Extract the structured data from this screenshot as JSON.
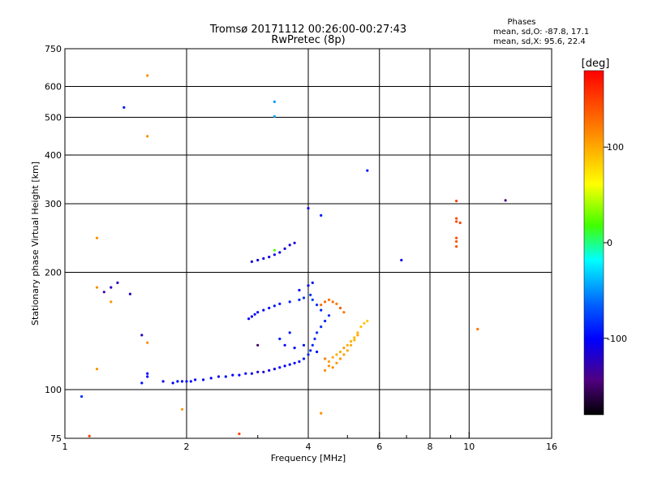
{
  "chart_data": {
    "type": "scatter",
    "title": "Tromsø 20171112 00:26:00-00:27:43",
    "subtitle": "RwPretec (8p)",
    "stats": {
      "heading": "Phases",
      "line1": "mean, sd,O: -87.8, 17.1",
      "line2": "mean, sd,X:  95.6, 22.4"
    },
    "xlabel": "Frequency [MHz]",
    "ylabel": "Stationary phase Virtual Height [km]",
    "xscale": "log",
    "yscale": "log",
    "xlim": [
      1,
      16
    ],
    "ylim": [
      75,
      750
    ],
    "xticks": [
      1,
      2,
      4,
      6,
      8,
      10,
      16
    ],
    "xtick_labels": [
      "1",
      "2",
      "4",
      "6",
      "8",
      "10",
      "16"
    ],
    "xgrid": [
      2,
      4,
      6,
      8,
      10
    ],
    "xminor": [
      3,
      5,
      7,
      9
    ],
    "yticks": [
      75,
      100,
      200,
      300,
      400,
      500,
      600,
      750
    ],
    "ytick_labels": [
      "75",
      "100",
      "200",
      "300",
      "400",
      "500",
      "600",
      "750"
    ],
    "colorbar": {
      "label": "[deg]",
      "range": [
        -180,
        180
      ],
      "ticks": [
        100,
        0,
        -100
      ],
      "tick_labels": [
        "100",
        "0",
        "-100"
      ]
    },
    "series": [
      {
        "name": "O-mode trace",
        "points": [
          [
            1.85,
            104,
            -100
          ],
          [
            1.9,
            105,
            -100
          ],
          [
            1.95,
            105,
            -100
          ],
          [
            2.0,
            105,
            -95
          ],
          [
            2.05,
            105,
            -95
          ],
          [
            2.1,
            106,
            -100
          ],
          [
            2.2,
            106,
            -100
          ],
          [
            2.3,
            107,
            -100
          ],
          [
            2.4,
            108,
            -100
          ],
          [
            2.5,
            108,
            -100
          ],
          [
            2.6,
            109,
            -100
          ],
          [
            2.7,
            109,
            -100
          ],
          [
            2.8,
            110,
            -100
          ],
          [
            2.9,
            110,
            -105
          ],
          [
            3.0,
            111,
            -110
          ],
          [
            3.1,
            111,
            -115
          ],
          [
            3.2,
            112,
            -110
          ],
          [
            3.3,
            113,
            -110
          ],
          [
            3.4,
            114,
            -100
          ],
          [
            3.5,
            115,
            -100
          ],
          [
            3.6,
            116,
            -100
          ],
          [
            3.7,
            117,
            -100
          ],
          [
            3.8,
            118,
            -95
          ],
          [
            3.9,
            120,
            -90
          ],
          [
            4.0,
            123,
            -85
          ],
          [
            4.05,
            126,
            -85
          ],
          [
            4.1,
            130,
            -85
          ],
          [
            4.15,
            135,
            -80
          ],
          [
            4.2,
            140,
            -80
          ],
          [
            4.3,
            145,
            -80
          ],
          [
            4.4,
            150,
            -85
          ],
          [
            4.5,
            155,
            -80
          ],
          [
            4.3,
            160,
            -85
          ],
          [
            4.2,
            165,
            -80
          ],
          [
            4.1,
            170,
            -75
          ],
          [
            4.05,
            175,
            -80
          ],
          [
            3.9,
            172,
            -80
          ],
          [
            3.8,
            170,
            -85
          ],
          [
            3.6,
            168,
            -85
          ],
          [
            3.4,
            166,
            -90
          ],
          [
            3.3,
            164,
            -90
          ],
          [
            3.2,
            162,
            -95
          ],
          [
            3.1,
            160,
            -100
          ],
          [
            3.0,
            158,
            -100
          ],
          [
            2.95,
            156,
            -100
          ],
          [
            2.9,
            154,
            -105
          ],
          [
            2.85,
            152,
            -100
          ],
          [
            3.5,
            130,
            -100
          ],
          [
            3.7,
            128,
            -100
          ],
          [
            3.9,
            130,
            -95
          ],
          [
            4.2,
            125,
            -95
          ],
          [
            4.4,
            120,
            -95
          ],
          [
            3.4,
            135,
            -90
          ],
          [
            3.6,
            140,
            -90
          ],
          [
            2.9,
            213,
            -110
          ],
          [
            3.0,
            215,
            -110
          ],
          [
            3.1,
            217,
            -110
          ],
          [
            3.2,
            219,
            -110
          ],
          [
            3.3,
            222,
            -105
          ],
          [
            3.4,
            225,
            -105
          ],
          [
            3.5,
            230,
            -110
          ],
          [
            3.6,
            235,
            -110
          ],
          [
            3.7,
            238,
            -110
          ],
          [
            3.3,
            228,
            25
          ],
          [
            4.0,
            292,
            -105
          ],
          [
            4.3,
            280,
            -90
          ],
          [
            5.6,
            365,
            -90
          ],
          [
            6.8,
            215,
            -105
          ],
          [
            1.4,
            530,
            -90
          ],
          [
            3.3,
            548,
            -45
          ],
          [
            3.3,
            503,
            -40
          ],
          [
            1.1,
            96,
            -80
          ],
          [
            1.3,
            183,
            -120
          ],
          [
            1.35,
            188,
            -115
          ],
          [
            1.45,
            176,
            -120
          ],
          [
            1.55,
            138,
            -120
          ],
          [
            1.55,
            104,
            -95
          ],
          [
            1.6,
            108,
            -100
          ],
          [
            1.75,
            105,
            -110
          ],
          [
            3.8,
            180,
            -95
          ],
          [
            4.0,
            185,
            -100
          ],
          [
            4.1,
            188,
            -95
          ],
          [
            1.6,
            110,
            -100
          ]
        ]
      },
      {
        "name": "X-mode trace",
        "points": [
          [
            4.3,
            165,
            130
          ],
          [
            4.4,
            168,
            130
          ],
          [
            4.5,
            170,
            125
          ],
          [
            4.6,
            168,
            130
          ],
          [
            4.7,
            166,
            125
          ],
          [
            4.8,
            162,
            140
          ],
          [
            4.9,
            158,
            125
          ],
          [
            4.4,
            120,
            110
          ],
          [
            4.5,
            118,
            105
          ],
          [
            4.6,
            121,
            100
          ],
          [
            4.7,
            123,
            100
          ],
          [
            4.8,
            125,
            100
          ],
          [
            4.9,
            128,
            105
          ],
          [
            5.0,
            130,
            100
          ],
          [
            5.1,
            133,
            95
          ],
          [
            5.2,
            136,
            95
          ],
          [
            5.3,
            140,
            95
          ],
          [
            5.4,
            145,
            90
          ],
          [
            5.5,
            148,
            90
          ],
          [
            5.6,
            150,
            85
          ],
          [
            4.5,
            115,
            110
          ],
          [
            4.6,
            114,
            115
          ],
          [
            4.7,
            117,
            110
          ],
          [
            4.8,
            120,
            110
          ],
          [
            4.9,
            123,
            105
          ],
          [
            5.0,
            126,
            100
          ],
          [
            5.1,
            130,
            100
          ],
          [
            5.2,
            134,
            95
          ],
          [
            5.3,
            138,
            100
          ],
          [
            4.4,
            112,
            115
          ],
          [
            9.3,
            305,
            150
          ],
          [
            9.3,
            275,
            145
          ],
          [
            9.3,
            270,
            145
          ],
          [
            9.5,
            268,
            150
          ],
          [
            9.3,
            245,
            145
          ],
          [
            9.3,
            240,
            140
          ],
          [
            9.3,
            233,
            145
          ],
          [
            10.5,
            143,
            125
          ],
          [
            12.3,
            306,
            -140
          ],
          [
            1.6,
            640,
            115
          ],
          [
            1.6,
            447,
            115
          ],
          [
            1.2,
            245,
            115
          ],
          [
            1.2,
            183,
            115
          ],
          [
            1.3,
            168,
            110
          ],
          [
            1.6,
            132,
            115
          ],
          [
            1.2,
            113,
            110
          ],
          [
            1.15,
            76,
            150
          ],
          [
            1.95,
            89,
            110
          ],
          [
            2.7,
            77,
            150
          ],
          [
            4.3,
            87,
            115
          ],
          [
            3.0,
            130,
            -150
          ],
          [
            1.25,
            178,
            -125
          ]
        ]
      }
    ]
  }
}
